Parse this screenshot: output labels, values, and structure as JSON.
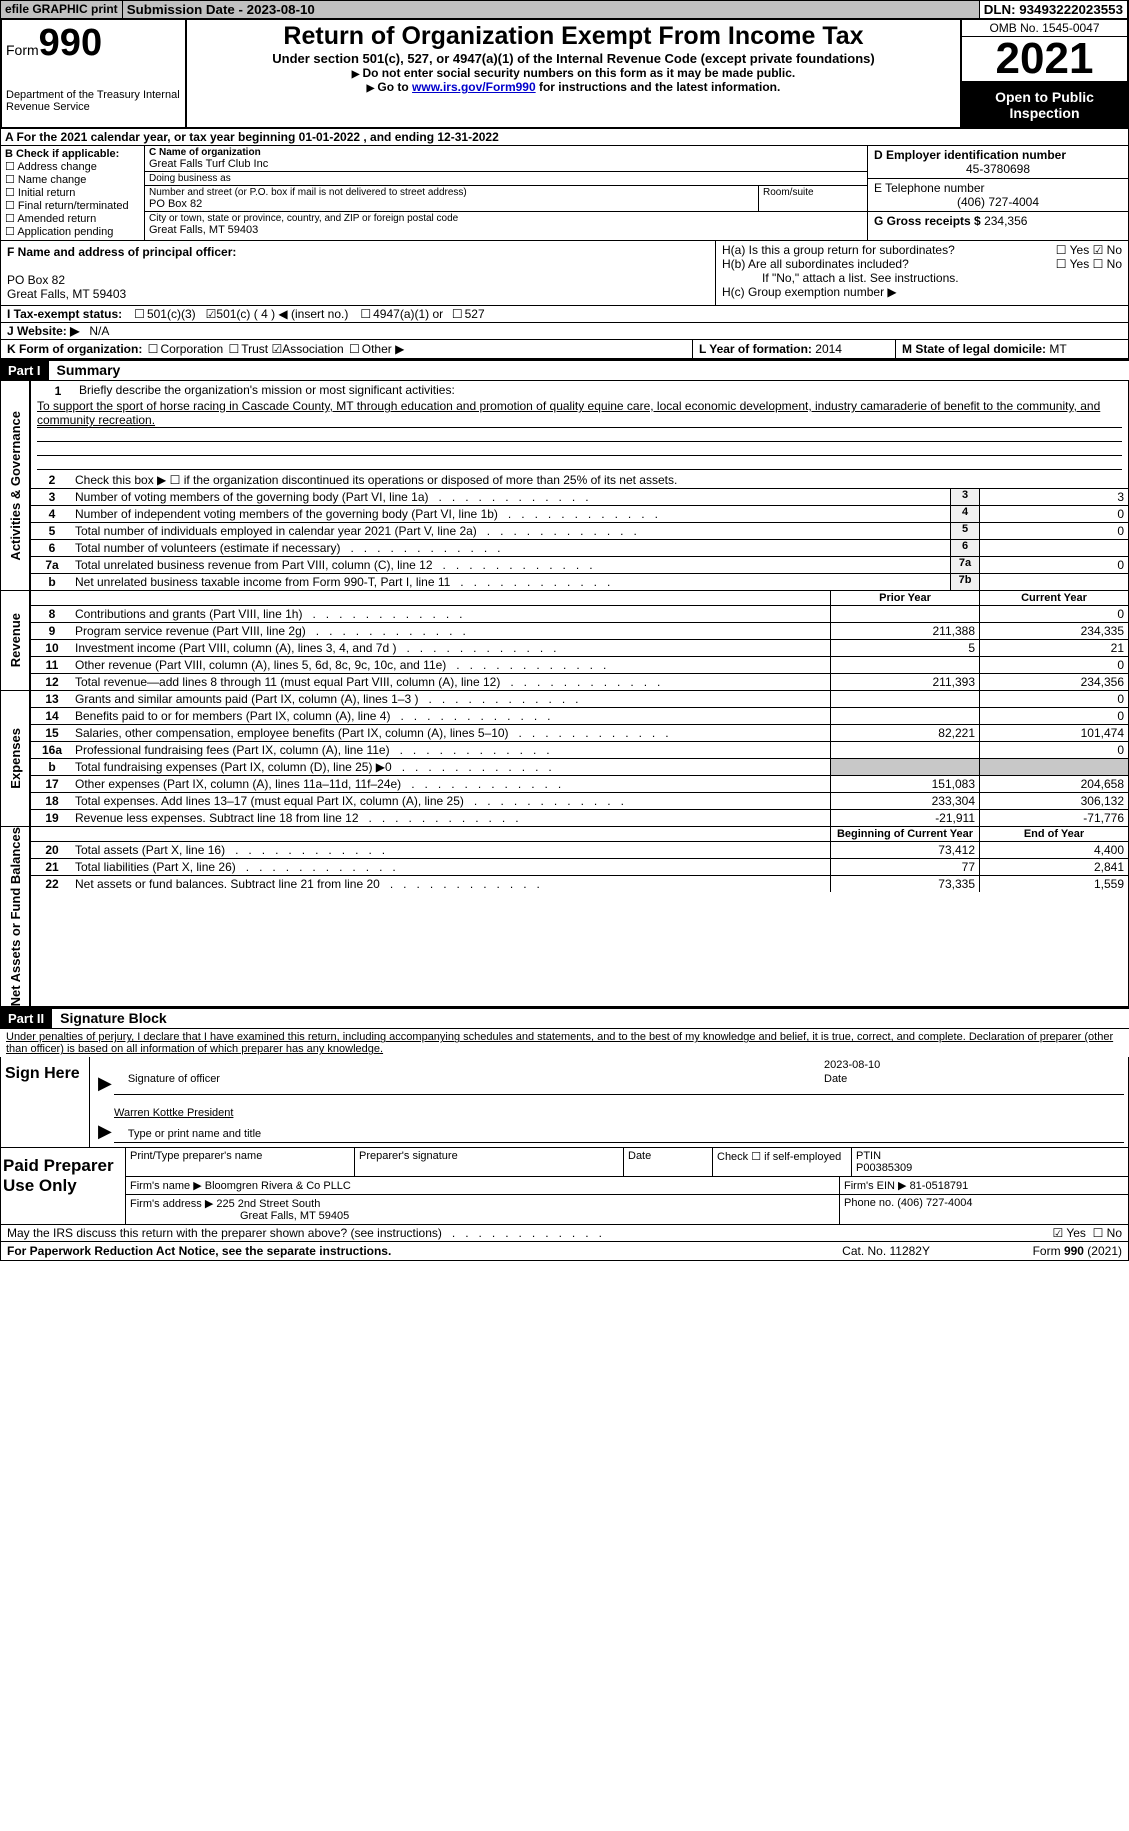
{
  "top": {
    "efile": "efile GRAPHIC print",
    "submission": "Submission Date - 2023-08-10",
    "dln": "DLN: 93493222023553"
  },
  "header": {
    "form_label": "Form",
    "form_num": "990",
    "dept": "Department of the Treasury Internal Revenue Service",
    "title": "Return of Organization Exempt From Income Tax",
    "subtitle": "Under section 501(c), 527, or 4947(a)(1) of the Internal Revenue Code (except private foundations)",
    "note1": "Do not enter social security numbers on this form as it may be made public.",
    "note2_pre": "Go to ",
    "note2_link": "www.irs.gov/Form990",
    "note2_post": " for instructions and the latest information.",
    "omb": "OMB No. 1545-0047",
    "year": "2021",
    "inspection": "Open to Public Inspection"
  },
  "period": "A For the 2021 calendar year, or tax year beginning 01-01-2022   , and ending 12-31-2022",
  "boxB": {
    "title": "B Check if applicable:",
    "items": [
      "Address change",
      "Name change",
      "Initial return",
      "Final return/terminated",
      "Amended return",
      "Application pending"
    ]
  },
  "boxC": {
    "name_lbl": "C Name of organization",
    "name": "Great Falls Turf Club Inc",
    "dba_lbl": "Doing business as",
    "dba": "",
    "street_lbl": "Number and street (or P.O. box if mail is not delivered to street address)",
    "room_lbl": "Room/suite",
    "street": "PO Box 82",
    "city_lbl": "City or town, state or province, country, and ZIP or foreign postal code",
    "city": "Great Falls, MT  59403"
  },
  "boxD": {
    "lbl": "D Employer identification number",
    "val": "45-3780698"
  },
  "boxE": {
    "lbl": "E Telephone number",
    "val": "(406) 727-4004"
  },
  "boxG": {
    "lbl": "G Gross receipts $",
    "val": "234,356"
  },
  "boxF": {
    "lbl": "F Name and address of principal officer:",
    "line1": "PO Box 82",
    "line2": "Great Falls, MT  59403"
  },
  "boxH": {
    "ha": "H(a)  Is this a group return for subordinates?",
    "hb": "H(b)  Are all subordinates included?",
    "hb_note": "If \"No,\" attach a list. See instructions.",
    "hc": "H(c)  Group exemption number ▶",
    "yes": "Yes",
    "no": "No"
  },
  "boxI": {
    "lbl": "I   Tax-exempt status:",
    "o1": "501(c)(3)",
    "o2": "501(c) ( 4 ) ◀ (insert no.)",
    "o3": "4947(a)(1) or",
    "o4": "527"
  },
  "boxJ": {
    "lbl": "J   Website: ▶",
    "val": "N/A"
  },
  "boxK": {
    "lbl": "K Form of organization:",
    "o1": "Corporation",
    "o2": "Trust",
    "o3": "Association",
    "o4": "Other ▶"
  },
  "boxL": {
    "lbl": "L Year of formation:",
    "val": "2014"
  },
  "boxM": {
    "lbl": "M State of legal domicile:",
    "val": "MT"
  },
  "parts": {
    "p1": "Part I",
    "p1t": "Summary",
    "p2": "Part II",
    "p2t": "Signature Block"
  },
  "summary": {
    "l1_lbl": "Briefly describe the organization's mission or most significant activities:",
    "l1_text": "To support the sport of horse racing in Cascade County, MT through education and promotion of quality equine care, local economic development, industry camaraderie of benefit to the community, and community recreation.",
    "l2": "Check this box ▶ ☐  if the organization discontinued its operations or disposed of more than 25% of its net assets.",
    "rows_top": [
      {
        "n": "3",
        "d": "Number of voting members of the governing body (Part VI, line 1a)",
        "b": "3",
        "v": "3"
      },
      {
        "n": "4",
        "d": "Number of independent voting members of the governing body (Part VI, line 1b)",
        "b": "4",
        "v": "0"
      },
      {
        "n": "5",
        "d": "Total number of individuals employed in calendar year 2021 (Part V, line 2a)",
        "b": "5",
        "v": "0"
      },
      {
        "n": "6",
        "d": "Total number of volunteers (estimate if necessary)",
        "b": "6",
        "v": ""
      },
      {
        "n": "7a",
        "d": "Total unrelated business revenue from Part VIII, column (C), line 12",
        "b": "7a",
        "v": "0"
      },
      {
        "n": "b",
        "d": "Net unrelated business taxable income from Form 990-T, Part I, line 11",
        "b": "7b",
        "v": ""
      }
    ],
    "col_prior": "Prior Year",
    "col_curr": "Current Year",
    "col_begin": "Beginning of Current Year",
    "col_end": "End of Year",
    "revenue": [
      {
        "n": "8",
        "d": "Contributions and grants (Part VIII, line 1h)",
        "p": "",
        "c": "0"
      },
      {
        "n": "9",
        "d": "Program service revenue (Part VIII, line 2g)",
        "p": "211,388",
        "c": "234,335"
      },
      {
        "n": "10",
        "d": "Investment income (Part VIII, column (A), lines 3, 4, and 7d )",
        "p": "5",
        "c": "21"
      },
      {
        "n": "11",
        "d": "Other revenue (Part VIII, column (A), lines 5, 6d, 8c, 9c, 10c, and 11e)",
        "p": "",
        "c": "0"
      },
      {
        "n": "12",
        "d": "Total revenue—add lines 8 through 11 (must equal Part VIII, column (A), line 12)",
        "p": "211,393",
        "c": "234,356"
      }
    ],
    "expenses": [
      {
        "n": "13",
        "d": "Grants and similar amounts paid (Part IX, column (A), lines 1–3 )",
        "p": "",
        "c": "0"
      },
      {
        "n": "14",
        "d": "Benefits paid to or for members (Part IX, column (A), line 4)",
        "p": "",
        "c": "0"
      },
      {
        "n": "15",
        "d": "Salaries, other compensation, employee benefits (Part IX, column (A), lines 5–10)",
        "p": "82,221",
        "c": "101,474"
      },
      {
        "n": "16a",
        "d": "Professional fundraising fees (Part IX, column (A), line 11e)",
        "p": "",
        "c": "0"
      },
      {
        "n": "b",
        "d": "Total fundraising expenses (Part IX, column (D), line 25) ▶0",
        "p": "",
        "c": "",
        "shade": 1
      },
      {
        "n": "17",
        "d": "Other expenses (Part IX, column (A), lines 11a–11d, 11f–24e)",
        "p": "151,083",
        "c": "204,658"
      },
      {
        "n": "18",
        "d": "Total expenses. Add lines 13–17 (must equal Part IX, column (A), line 25)",
        "p": "233,304",
        "c": "306,132"
      },
      {
        "n": "19",
        "d": "Revenue less expenses. Subtract line 18 from line 12",
        "p": "-21,911",
        "c": "-71,776"
      }
    ],
    "netassets": [
      {
        "n": "20",
        "d": "Total assets (Part X, line 16)",
        "p": "73,412",
        "c": "4,400"
      },
      {
        "n": "21",
        "d": "Total liabilities (Part X, line 26)",
        "p": "77",
        "c": "2,841"
      },
      {
        "n": "22",
        "d": "Net assets or fund balances. Subtract line 21 from line 20",
        "p": "73,335",
        "c": "1,559"
      }
    ],
    "side_ag": "Activities & Governance",
    "side_rev": "Revenue",
    "side_exp": "Expenses",
    "side_net": "Net Assets or Fund Balances"
  },
  "penalty": "Under penalties of perjury, I declare that I have examined this return, including accompanying schedules and statements, and to the best of my knowledge and belief, it is true, correct, and complete. Declaration of preparer (other than officer) is based on all information of which preparer has any knowledge.",
  "sign": {
    "lbl": "Sign Here",
    "sig_of": "Signature of officer",
    "date": "Date",
    "date_val": "2023-08-10",
    "name_val": "Warren Kottke  President",
    "name_lbl": "Type or print name and title"
  },
  "paid": {
    "lbl": "Paid Preparer Use Only",
    "c1": "Print/Type preparer's name",
    "c2": "Preparer's signature",
    "c3": "Date",
    "c4": "Check ☐ if self-employed",
    "c5_l": "PTIN",
    "c5": "P00385309",
    "firm_l": "Firm's name    ▶",
    "firm": "Bloomgren Rivera & Co PLLC",
    "ein_l": "Firm's EIN ▶",
    "ein": "81-0518791",
    "addr_l": "Firm's address ▶",
    "addr": "225 2nd Street South",
    "addr2": "Great Falls, MT  59405",
    "phone_l": "Phone no.",
    "phone": "(406) 727-4004"
  },
  "discuss": "May the IRS discuss this return with the preparer shown above? (see instructions)",
  "footer": {
    "pra": "For Paperwork Reduction Act Notice, see the separate instructions.",
    "cat": "Cat. No. 11282Y",
    "form": "Form 990 (2021)"
  }
}
